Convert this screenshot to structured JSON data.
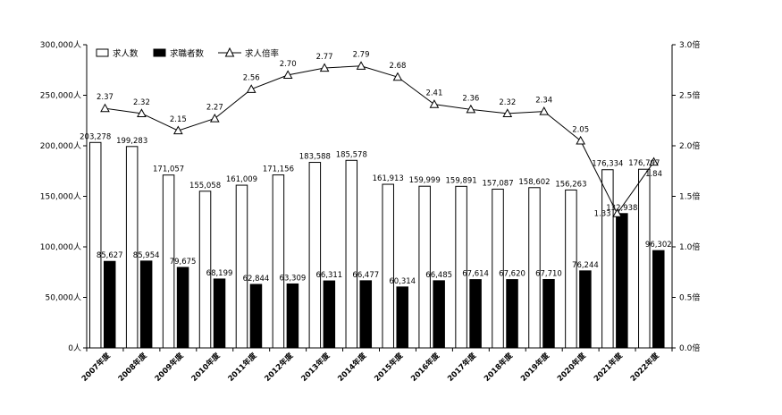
{
  "chart_data": {
    "type": "bar",
    "categories": [
      "2007年度",
      "2008年度",
      "2009年度",
      "2010年度",
      "2011年度",
      "2012年度",
      "2013年度",
      "2014年度",
      "2015年度",
      "2016年度",
      "2017年度",
      "2018年度",
      "2019年度",
      "2020年度",
      "2021年度",
      "2022年度"
    ],
    "series": [
      {
        "name": "求人数",
        "type": "bar",
        "axis": "left",
        "color": "#ffffff",
        "values": [
          203278,
          199283,
          171057,
          155058,
          161009,
          171156,
          183588,
          185578,
          161913,
          159999,
          159891,
          157087,
          158602,
          156263,
          176334,
          176797
        ],
        "labels": [
          "203,278",
          "199,283",
          "171,057",
          "155,058",
          "161,009",
          "171,156",
          "183,588",
          "185,578",
          "161,913",
          "159,999",
          "159,891",
          "157,087",
          "158,602",
          "156,263",
          "176,334",
          "176,797"
        ]
      },
      {
        "name": "求職者数",
        "type": "bar",
        "axis": "left",
        "color": "#000000",
        "values": [
          85627,
          85954,
          79675,
          68199,
          62844,
          63309,
          66311,
          66477,
          60314,
          66485,
          67614,
          67620,
          67710,
          76244,
          132938,
          96302
        ],
        "labels": [
          "85,627",
          "85,954",
          "79,675",
          "68,199",
          "62,844",
          "63,309",
          "66,311",
          "66,477",
          "60,314",
          "66,485",
          "67,614",
          "67,620",
          "67,710",
          "76,244",
          "132,938",
          "96,302"
        ]
      },
      {
        "name": "求人倍率",
        "type": "line",
        "axis": "right",
        "marker": "triangle",
        "values": [
          2.37,
          2.32,
          2.15,
          2.27,
          2.56,
          2.7,
          2.77,
          2.79,
          2.68,
          2.41,
          2.36,
          2.32,
          2.34,
          2.05,
          1.33,
          1.84
        ],
        "labels": [
          "2.37",
          "2.32",
          "2.15",
          "2.27",
          "2.56",
          "2.70",
          "2.77",
          "2.79",
          "2.68",
          "2.41",
          "2.36",
          "2.32",
          "2.34",
          "2.05",
          "1.33",
          "1.84"
        ]
      }
    ],
    "y_left": {
      "min": 0,
      "max": 300000,
      "ticks": [
        "0人",
        "50,000人",
        "100,000人",
        "150,000人",
        "200,000人",
        "250,000人",
        "300,000人"
      ]
    },
    "y_right": {
      "min": 0,
      "max": 3.0,
      "ticks": [
        "0.0倍",
        "0.5倍",
        "1.0倍",
        "1.5倍",
        "2.0倍",
        "2.5倍",
        "3.0倍"
      ]
    },
    "legend": {
      "position": "top-left",
      "items": [
        "求人数",
        "求職者数",
        "求人倍率"
      ]
    },
    "grid": false
  }
}
